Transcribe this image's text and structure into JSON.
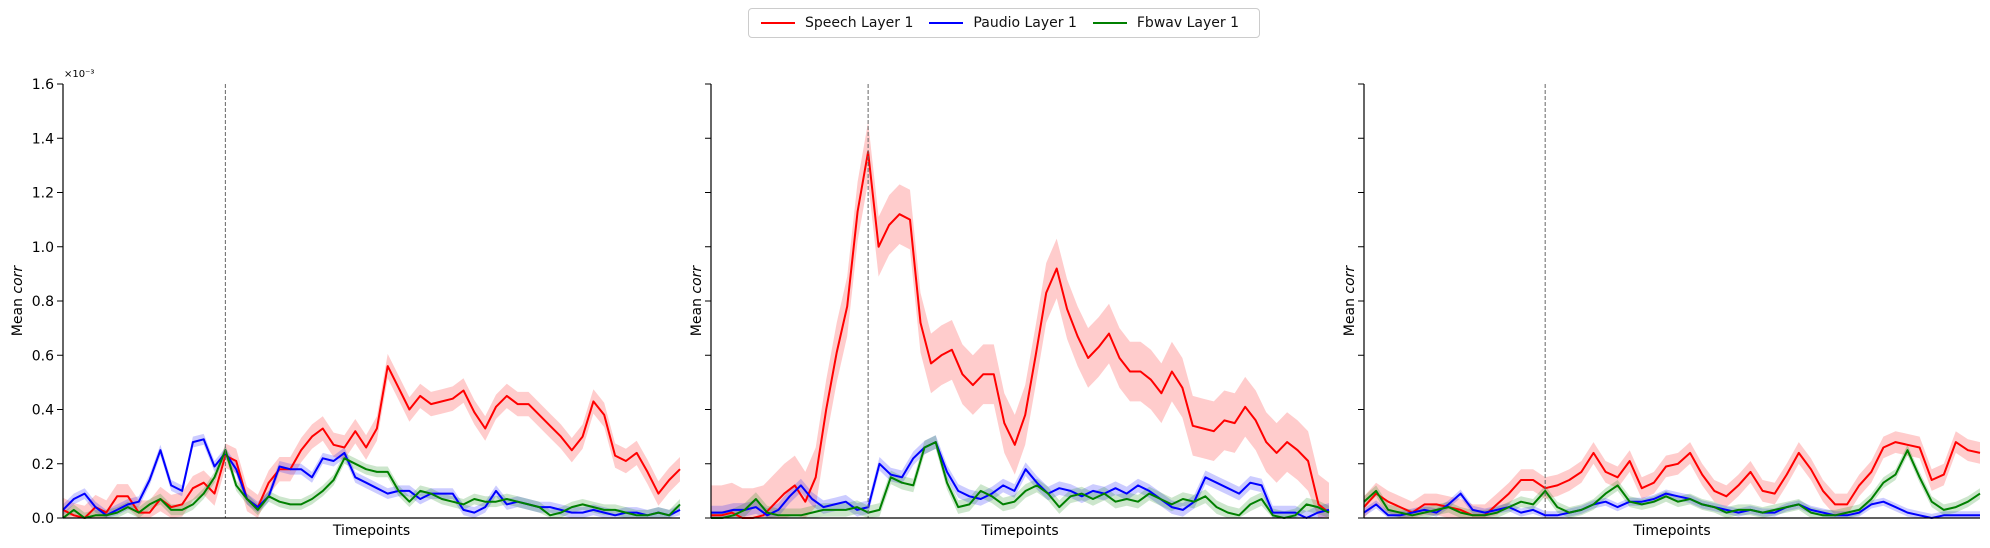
{
  "chart_data": {
    "type": "line",
    "legend": [
      {
        "label": "Speech Layer 1",
        "color": "#ff0000"
      },
      {
        "label": "Paudio Layer 1",
        "color": "#0000ff"
      },
      {
        "label": "Fbwav Layer 1",
        "color": "#008000"
      }
    ],
    "scale_label": "×10⁻³",
    "ylabel": "Mean",
    "ylabel_italic": "corr",
    "xlabel": "Timepoints",
    "ylim": [
      0,
      1.6
    ],
    "yticks": [
      "0.0",
      "0.2",
      "0.4",
      "0.6",
      "0.8",
      "1.0",
      "1.2",
      "1.4",
      "1.6"
    ],
    "vline_index": 15,
    "grid": false,
    "panels": [
      {
        "series": [
          {
            "name": "Speech Layer 1",
            "color": "#ff0000",
            "values": [
              0.03,
              0.01,
              0.0,
              0.04,
              0.02,
              0.08,
              0.08,
              0.02,
              0.02,
              0.07,
              0.04,
              0.05,
              0.11,
              0.13,
              0.09,
              0.23,
              0.21,
              0.07,
              0.04,
              0.13,
              0.18,
              0.18,
              0.25,
              0.3,
              0.33,
              0.27,
              0.26,
              0.32,
              0.26,
              0.33,
              0.56,
              0.48,
              0.4,
              0.45,
              0.42,
              0.43,
              0.44,
              0.47,
              0.39,
              0.33,
              0.41,
              0.45,
              0.42,
              0.42,
              0.38,
              0.34,
              0.3,
              0.25,
              0.3,
              0.43,
              0.38,
              0.23,
              0.21,
              0.24,
              0.17,
              0.09,
              0.14,
              0.18
            ],
            "band": 0.045
          },
          {
            "name": "Paudio Layer 1",
            "color": "#0000ff",
            "values": [
              0.03,
              0.07,
              0.09,
              0.04,
              0.01,
              0.03,
              0.05,
              0.06,
              0.14,
              0.25,
              0.12,
              0.1,
              0.28,
              0.29,
              0.19,
              0.24,
              0.18,
              0.07,
              0.04,
              0.08,
              0.19,
              0.18,
              0.18,
              0.15,
              0.22,
              0.21,
              0.24,
              0.15,
              0.13,
              0.11,
              0.09,
              0.1,
              0.1,
              0.07,
              0.09,
              0.09,
              0.09,
              0.03,
              0.02,
              0.04,
              0.1,
              0.05,
              0.06,
              0.05,
              0.04,
              0.04,
              0.03,
              0.02,
              0.02,
              0.03,
              0.02,
              0.01,
              0.02,
              0.02,
              0.01,
              0.02,
              0.01,
              0.03
            ],
            "band": 0.02
          },
          {
            "name": "Fbwav Layer 1",
            "color": "#008000",
            "values": [
              0.0,
              0.03,
              0.0,
              0.01,
              0.01,
              0.02,
              0.04,
              0.02,
              0.05,
              0.07,
              0.03,
              0.03,
              0.05,
              0.09,
              0.15,
              0.25,
              0.12,
              0.07,
              0.03,
              0.08,
              0.06,
              0.05,
              0.05,
              0.07,
              0.1,
              0.14,
              0.22,
              0.2,
              0.18,
              0.17,
              0.17,
              0.1,
              0.06,
              0.1,
              0.09,
              0.07,
              0.06,
              0.05,
              0.07,
              0.06,
              0.06,
              0.07,
              0.06,
              0.05,
              0.04,
              0.01,
              0.02,
              0.04,
              0.05,
              0.04,
              0.03,
              0.03,
              0.02,
              0.01,
              0.01,
              0.02,
              0.01,
              0.05
            ],
            "band": 0.02
          }
        ]
      },
      {
        "series": [
          {
            "name": "Speech Layer 1",
            "color": "#ff0000",
            "values": [
              0.01,
              0.01,
              0.02,
              0.0,
              0.0,
              0.01,
              0.05,
              0.09,
              0.12,
              0.06,
              0.15,
              0.4,
              0.61,
              0.78,
              1.13,
              1.35,
              1.0,
              1.08,
              1.12,
              1.1,
              0.72,
              0.57,
              0.6,
              0.62,
              0.53,
              0.49,
              0.53,
              0.53,
              0.35,
              0.27,
              0.38,
              0.6,
              0.83,
              0.92,
              0.77,
              0.67,
              0.59,
              0.63,
              0.68,
              0.59,
              0.54,
              0.54,
              0.51,
              0.46,
              0.54,
              0.48,
              0.34,
              0.33,
              0.32,
              0.36,
              0.35,
              0.41,
              0.36,
              0.28,
              0.24,
              0.28,
              0.25,
              0.21,
              0.05,
              0.02
            ],
            "band": 0.11
          },
          {
            "name": "Paudio Layer 1",
            "color": "#0000ff",
            "values": [
              0.02,
              0.02,
              0.03,
              0.03,
              0.04,
              0.01,
              0.03,
              0.08,
              0.12,
              0.07,
              0.04,
              0.05,
              0.06,
              0.03,
              0.04,
              0.2,
              0.16,
              0.15,
              0.22,
              0.26,
              0.28,
              0.17,
              0.1,
              0.08,
              0.07,
              0.09,
              0.12,
              0.1,
              0.18,
              0.13,
              0.09,
              0.11,
              0.1,
              0.08,
              0.1,
              0.09,
              0.11,
              0.09,
              0.12,
              0.1,
              0.07,
              0.04,
              0.03,
              0.06,
              0.15,
              0.13,
              0.11,
              0.09,
              0.13,
              0.12,
              0.02,
              0.02,
              0.02,
              0.0,
              0.02,
              0.03
            ],
            "band": 0.025
          },
          {
            "name": "Fbwav Layer 1",
            "color": "#008000",
            "values": [
              0.0,
              0.0,
              0.01,
              0.03,
              0.07,
              0.02,
              0.01,
              0.01,
              0.01,
              0.02,
              0.03,
              0.03,
              0.03,
              0.04,
              0.02,
              0.03,
              0.15,
              0.13,
              0.12,
              0.26,
              0.28,
              0.13,
              0.04,
              0.05,
              0.1,
              0.08,
              0.05,
              0.06,
              0.1,
              0.12,
              0.09,
              0.04,
              0.08,
              0.09,
              0.07,
              0.09,
              0.06,
              0.07,
              0.06,
              0.09,
              0.07,
              0.05,
              0.07,
              0.06,
              0.08,
              0.04,
              0.02,
              0.01,
              0.05,
              0.07,
              0.01,
              0.0,
              0.01,
              0.05,
              0.04,
              0.02
            ],
            "band": 0.025
          }
        ]
      },
      {
        "series": [
          {
            "name": "Speech Layer 1",
            "color": "#ff0000",
            "values": [
              0.04,
              0.09,
              0.06,
              0.04,
              0.02,
              0.05,
              0.05,
              0.04,
              0.03,
              0.01,
              0.01,
              0.05,
              0.09,
              0.14,
              0.14,
              0.11,
              0.12,
              0.14,
              0.17,
              0.24,
              0.17,
              0.15,
              0.21,
              0.11,
              0.13,
              0.19,
              0.2,
              0.24,
              0.16,
              0.1,
              0.08,
              0.12,
              0.17,
              0.1,
              0.09,
              0.16,
              0.24,
              0.18,
              0.1,
              0.05,
              0.05,
              0.12,
              0.17,
              0.26,
              0.28,
              0.27,
              0.26,
              0.14,
              0.16,
              0.28,
              0.25,
              0.24
            ],
            "band": 0.04
          },
          {
            "name": "Paudio Layer 1",
            "color": "#0000ff",
            "values": [
              0.02,
              0.05,
              0.01,
              0.01,
              0.02,
              0.03,
              0.02,
              0.05,
              0.09,
              0.03,
              0.02,
              0.03,
              0.04,
              0.02,
              0.03,
              0.01,
              0.01,
              0.02,
              0.03,
              0.05,
              0.06,
              0.04,
              0.06,
              0.06,
              0.07,
              0.09,
              0.08,
              0.07,
              0.05,
              0.04,
              0.03,
              0.02,
              0.03,
              0.02,
              0.02,
              0.04,
              0.05,
              0.03,
              0.02,
              0.01,
              0.01,
              0.02,
              0.05,
              0.06,
              0.04,
              0.02,
              0.01,
              0.0,
              0.01,
              0.01,
              0.01,
              0.01
            ],
            "band": 0.015
          },
          {
            "name": "Fbwav Layer 1",
            "color": "#008000",
            "values": [
              0.06,
              0.1,
              0.03,
              0.02,
              0.01,
              0.02,
              0.03,
              0.04,
              0.02,
              0.01,
              0.01,
              0.02,
              0.04,
              0.06,
              0.05,
              0.1,
              0.04,
              0.02,
              0.03,
              0.05,
              0.09,
              0.12,
              0.06,
              0.05,
              0.06,
              0.08,
              0.06,
              0.07,
              0.05,
              0.04,
              0.02,
              0.03,
              0.03,
              0.02,
              0.03,
              0.04,
              0.05,
              0.02,
              0.01,
              0.01,
              0.02,
              0.03,
              0.07,
              0.13,
              0.16,
              0.25,
              0.15,
              0.06,
              0.03,
              0.04,
              0.06,
              0.09
            ],
            "band": 0.02
          }
        ]
      }
    ]
  }
}
